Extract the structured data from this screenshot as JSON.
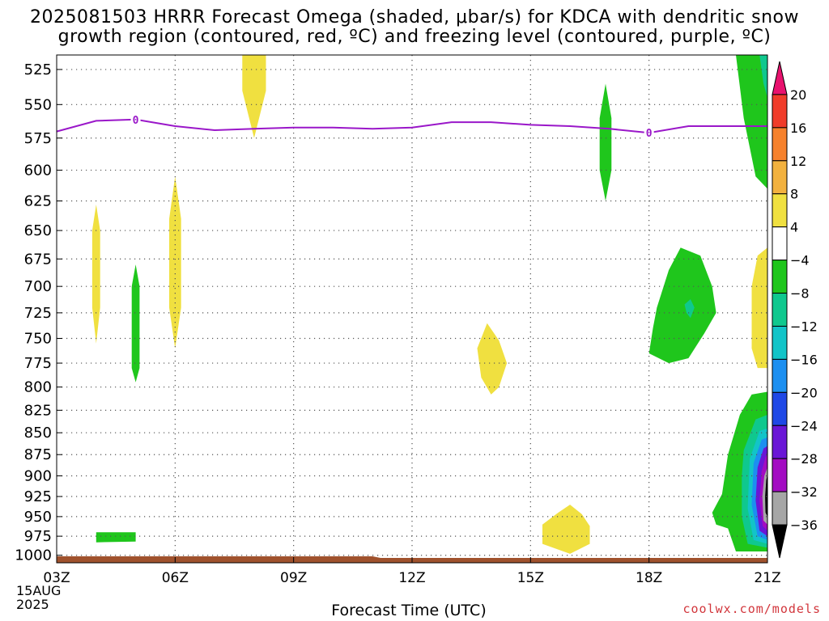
{
  "header": {
    "title_line1": "2025081503 HRRR Forecast Omega (shaded, μbar/s) for KDCA with dendritic snow",
    "title_line2": "growth region (contoured, red, ºC) and freezing level (contoured, purple, ºC)"
  },
  "footer": {
    "credit": "coolwx.com/models",
    "date_day": "15AUG",
    "date_year": "2025"
  },
  "colors": {
    "freezing_line": "#9a17c9",
    "ground": "#a0522d",
    "grid": "#555555"
  },
  "chart_data": {
    "type": "heatmap",
    "xlabel": "Forecast Time (UTC)",
    "ylabel": "",
    "x_ticks": [
      "03Z",
      "06Z",
      "09Z",
      "12Z",
      "15Z",
      "18Z",
      "21Z"
    ],
    "x_range_hours": [
      3,
      21
    ],
    "y_ticks": [
      525,
      550,
      575,
      600,
      625,
      650,
      675,
      700,
      725,
      750,
      775,
      800,
      825,
      850,
      875,
      900,
      925,
      950,
      975,
      1000
    ],
    "y_range_hPa": [
      515,
      1010
    ],
    "y_scale": "log-pressure",
    "grid": true,
    "colorbar": {
      "position": "right",
      "labels": [
        "20",
        "16",
        "12",
        "8",
        "4",
        "−4",
        "−8",
        "−12",
        "−16",
        "−20",
        "−24",
        "−28",
        "−32",
        "−36"
      ],
      "levels": [
        20,
        16,
        12,
        8,
        4,
        -4,
        -8,
        -12,
        -16,
        -20,
        -24,
        -28,
        -32,
        -36
      ],
      "colors": [
        "#e8126e",
        "#f03c2a",
        "#f6812c",
        "#f2b13e",
        "#f0e040",
        "#ffffff",
        "#1fc61c",
        "#0fc88e",
        "#12c4c8",
        "#1c8ff0",
        "#1f48e6",
        "#6a16d6",
        "#a30cc2",
        "#a6a6a6",
        "#000000"
      ]
    },
    "freezing_level": {
      "label": "0",
      "points": [
        {
          "hour": 3.0,
          "hPa": 570
        },
        {
          "hour": 4.0,
          "hPa": 562
        },
        {
          "hour": 5.0,
          "hPa": 561
        },
        {
          "hour": 6.0,
          "hPa": 566
        },
        {
          "hour": 7.0,
          "hPa": 569
        },
        {
          "hour": 8.0,
          "hPa": 568
        },
        {
          "hour": 9.0,
          "hPa": 567
        },
        {
          "hour": 10.0,
          "hPa": 567
        },
        {
          "hour": 11.0,
          "hPa": 568
        },
        {
          "hour": 12.0,
          "hPa": 567
        },
        {
          "hour": 13.0,
          "hPa": 563
        },
        {
          "hour": 14.0,
          "hPa": 563
        },
        {
          "hour": 15.0,
          "hPa": 565
        },
        {
          "hour": 16.0,
          "hPa": 566
        },
        {
          "hour": 17.0,
          "hPa": 568
        },
        {
          "hour": 18.0,
          "hPa": 571
        },
        {
          "hour": 19.0,
          "hPa": 566
        },
        {
          "hour": 20.0,
          "hPa": 566
        },
        {
          "hour": 21.0,
          "hPa": 566
        }
      ],
      "label_positions": [
        {
          "hour": 5.0,
          "hPa": 561
        },
        {
          "hour": 18.0,
          "hPa": 571
        }
      ]
    },
    "omega_regions": [
      {
        "level": 4,
        "points": [
          [
            7.7,
            515
          ],
          [
            8.3,
            515
          ],
          [
            8.3,
            540
          ],
          [
            8.0,
            575
          ],
          [
            7.7,
            540
          ]
        ]
      },
      {
        "level": 4,
        "points": [
          [
            4.0,
            628
          ],
          [
            4.1,
            650
          ],
          [
            4.1,
            720
          ],
          [
            4.0,
            755
          ],
          [
            3.9,
            720
          ],
          [
            3.9,
            650
          ]
        ]
      },
      {
        "level": 4,
        "points": [
          [
            6.0,
            605
          ],
          [
            6.15,
            640
          ],
          [
            6.15,
            720
          ],
          [
            6.0,
            760
          ],
          [
            5.85,
            720
          ],
          [
            5.85,
            640
          ]
        ]
      },
      {
        "level": 4,
        "points": [
          [
            13.65,
            760
          ],
          [
            13.9,
            735
          ],
          [
            14.2,
            752
          ],
          [
            14.4,
            775
          ],
          [
            14.2,
            800
          ],
          [
            14.0,
            808
          ],
          [
            13.75,
            790
          ]
        ]
      },
      {
        "level": 4,
        "points": [
          [
            15.3,
            960
          ],
          [
            15.7,
            945
          ],
          [
            16.0,
            935
          ],
          [
            16.3,
            947
          ],
          [
            16.5,
            962
          ],
          [
            16.5,
            985
          ],
          [
            16.0,
            998
          ],
          [
            15.3,
            985
          ]
        ]
      },
      {
        "level": 4,
        "points": [
          [
            20.6,
            700
          ],
          [
            20.75,
            672
          ],
          [
            21.0,
            665
          ],
          [
            21.0,
            780
          ],
          [
            20.75,
            780
          ],
          [
            20.6,
            760
          ]
        ]
      },
      {
        "level": -4,
        "points": [
          [
            5.0,
            680
          ],
          [
            5.1,
            700
          ],
          [
            5.1,
            780
          ],
          [
            5.0,
            795
          ],
          [
            4.9,
            780
          ],
          [
            4.9,
            700
          ]
        ]
      },
      {
        "level": -4,
        "points": [
          [
            16.9,
            535
          ],
          [
            17.05,
            560
          ],
          [
            17.05,
            600
          ],
          [
            16.9,
            625
          ],
          [
            16.75,
            600
          ],
          [
            16.75,
            560
          ]
        ]
      },
      {
        "level": -4,
        "points": [
          [
            4.0,
            970
          ],
          [
            5.0,
            970
          ],
          [
            5.0,
            982
          ],
          [
            4.0,
            983
          ]
        ]
      },
      {
        "level": -4,
        "points": [
          [
            20.2,
            515
          ],
          [
            21.0,
            515
          ],
          [
            21.0,
            615
          ],
          [
            20.7,
            605
          ],
          [
            20.4,
            560
          ]
        ]
      },
      {
        "level": -8,
        "points": [
          [
            20.8,
            515
          ],
          [
            21.0,
            515
          ],
          [
            21.0,
            545
          ],
          [
            20.9,
            535
          ]
        ]
      },
      {
        "level": -4,
        "points": [
          [
            18.2,
            720
          ],
          [
            18.5,
            685
          ],
          [
            18.8,
            665
          ],
          [
            19.3,
            672
          ],
          [
            19.6,
            700
          ],
          [
            19.7,
            725
          ],
          [
            19.4,
            745
          ],
          [
            19.0,
            770
          ],
          [
            18.5,
            775
          ],
          [
            18.0,
            765
          ],
          [
            18.1,
            740
          ]
        ]
      },
      {
        "level": -8,
        "points": [
          [
            18.9,
            717
          ],
          [
            19.05,
            712
          ],
          [
            19.15,
            720
          ],
          [
            19.05,
            730
          ],
          [
            18.95,
            725
          ]
        ]
      },
      {
        "level": -4,
        "points": [
          [
            19.6,
            945
          ],
          [
            19.85,
            922
          ],
          [
            20.0,
            875
          ],
          [
            20.3,
            830
          ],
          [
            20.6,
            808
          ],
          [
            21.0,
            805
          ],
          [
            21.0,
            995
          ],
          [
            20.2,
            995
          ],
          [
            20.0,
            965
          ],
          [
            19.7,
            960
          ]
        ]
      },
      {
        "level": -8,
        "points": [
          [
            20.4,
            870
          ],
          [
            20.7,
            835
          ],
          [
            21.0,
            830
          ],
          [
            21.0,
            990
          ],
          [
            20.5,
            985
          ],
          [
            20.35,
            950
          ],
          [
            20.35,
            900
          ]
        ]
      },
      {
        "level": -12,
        "points": [
          [
            20.55,
            880
          ],
          [
            20.8,
            848
          ],
          [
            21.0,
            845
          ],
          [
            21.0,
            985
          ],
          [
            20.65,
            980
          ],
          [
            20.5,
            940
          ]
        ]
      },
      {
        "level": -16,
        "points": [
          [
            20.65,
            885
          ],
          [
            20.85,
            858
          ],
          [
            21.0,
            855
          ],
          [
            21.0,
            980
          ],
          [
            20.75,
            975
          ],
          [
            20.6,
            935
          ]
        ]
      },
      {
        "level": -24,
        "points": [
          [
            20.75,
            890
          ],
          [
            20.9,
            868
          ],
          [
            21.0,
            865
          ],
          [
            21.0,
            975
          ],
          [
            20.8,
            968
          ],
          [
            20.7,
            930
          ]
        ]
      },
      {
        "level": -28,
        "points": [
          [
            20.85,
            895
          ],
          [
            20.95,
            878
          ],
          [
            21.0,
            875
          ],
          [
            21.0,
            968
          ],
          [
            20.88,
            962
          ],
          [
            20.8,
            930
          ]
        ]
      },
      {
        "level": -32,
        "points": [
          [
            20.92,
            900
          ],
          [
            21.0,
            890
          ],
          [
            21.0,
            960
          ],
          [
            20.9,
            955
          ],
          [
            20.87,
            925
          ]
        ]
      },
      {
        "level": -36,
        "points": [
          [
            20.97,
            905
          ],
          [
            21.0,
            898
          ],
          [
            21.0,
            950
          ],
          [
            20.95,
            945
          ],
          [
            20.94,
            925
          ]
        ]
      }
    ]
  }
}
